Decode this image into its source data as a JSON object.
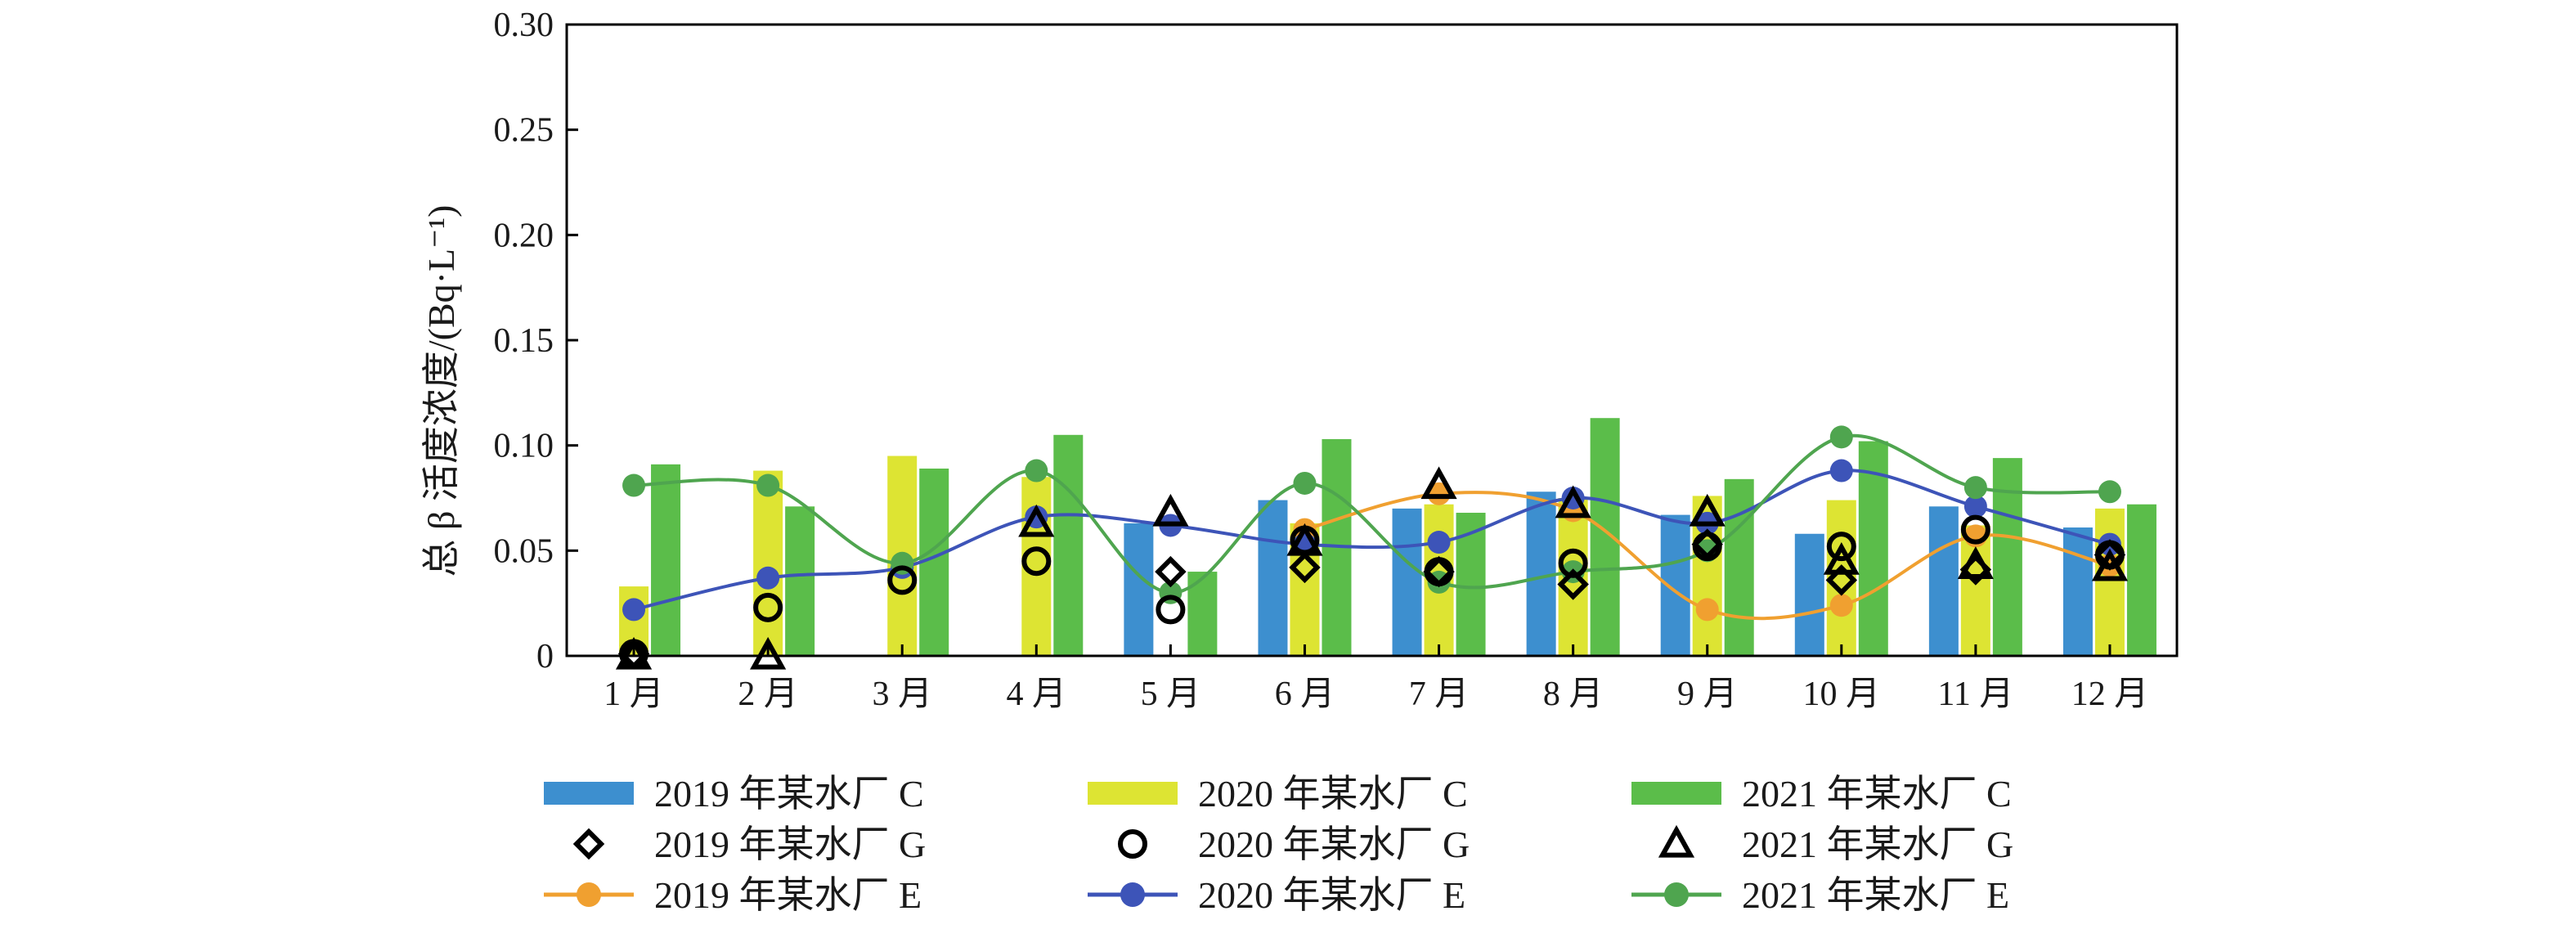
{
  "chart_data": {
    "type": "bar",
    "categories": [
      "1 月",
      "2 月",
      "3 月",
      "4 月",
      "5 月",
      "6 月",
      "7 月",
      "8 月",
      "9 月",
      "10 月",
      "11 月",
      "12 月"
    ],
    "ylabel": "总 β 活度浓度/(Bq·L⁻¹)",
    "ylim": [
      0,
      0.3
    ],
    "yticks": [
      0,
      0.05,
      0.1,
      0.15,
      0.2,
      0.25,
      0.3
    ],
    "ytick_labels": [
      "0",
      "0.05",
      "0.10",
      "0.15",
      "0.20",
      "0.25",
      "0.30"
    ],
    "bar_series": [
      {
        "name": "2019 年某水厂 C",
        "color": "#3d8fcf",
        "values": [
          null,
          null,
          null,
          null,
          0.063,
          0.074,
          0.07,
          0.078,
          0.067,
          0.058,
          0.071,
          0.061
        ]
      },
      {
        "name": "2020 年某水厂 C",
        "color": "#dde433",
        "values": [
          0.033,
          0.088,
          0.095,
          0.085,
          null,
          0.063,
          0.072,
          0.075,
          0.076,
          0.074,
          0.062,
          0.07
        ]
      },
      {
        "name": "2021 年某水厂 C",
        "color": "#5bbd4a",
        "values": [
          0.091,
          0.071,
          0.089,
          0.105,
          0.04,
          0.103,
          0.068,
          0.113,
          0.084,
          0.102,
          0.094,
          0.072
        ]
      }
    ],
    "marker_series": [
      {
        "name": "2019 年某水厂 G",
        "marker": "diamond",
        "values": [
          0.001,
          null,
          null,
          null,
          0.04,
          0.042,
          0.04,
          0.034,
          0.053,
          0.036,
          0.041,
          0.048
        ]
      },
      {
        "name": "2020 年某水厂 G",
        "marker": "circle",
        "values": [
          0.001,
          0.023,
          0.036,
          0.045,
          0.022,
          0.055,
          0.04,
          0.044,
          0.052,
          0.052,
          0.06,
          0.048
        ]
      },
      {
        "name": "2021 年某水厂 G",
        "marker": "triangle",
        "values": [
          0.0,
          0.0,
          null,
          0.063,
          0.068,
          0.054,
          0.081,
          0.072,
          0.068,
          0.045,
          0.043,
          0.042
        ]
      }
    ],
    "line_series": [
      {
        "name": "2019 年某水厂 E",
        "color": "#f0a030",
        "values": [
          null,
          null,
          null,
          null,
          null,
          0.06,
          0.077,
          0.069,
          0.022,
          0.024,
          0.057,
          0.043
        ]
      },
      {
        "name": "2020 年某水厂 E",
        "color": "#3d54b8",
        "values": [
          0.022,
          0.037,
          0.042,
          0.066,
          0.062,
          0.053,
          0.054,
          0.075,
          0.063,
          0.088,
          0.071,
          0.053
        ]
      },
      {
        "name": "2021 年某水厂 E",
        "color": "#4fa54f",
        "values": [
          0.081,
          0.081,
          0.044,
          0.088,
          0.03,
          0.082,
          0.035,
          0.04,
          0.05,
          0.104,
          0.08,
          0.078
        ]
      }
    ],
    "legend_position": "bottom"
  }
}
